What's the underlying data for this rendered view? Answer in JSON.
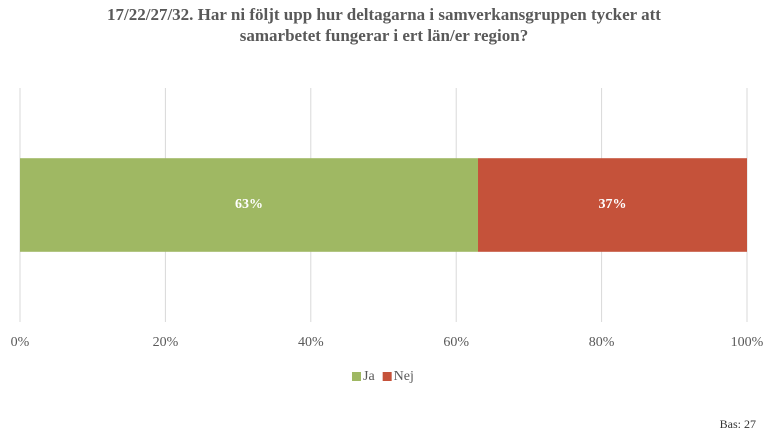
{
  "chart_data": {
    "type": "stacked_bar_horizontal",
    "title": "17/22/27/32.  Har ni följt upp hur deltagarna i samverkansgruppen tycker att samarbetet fungerar i ert län/er region?",
    "categories": [
      null
    ],
    "series": [
      {
        "name": "Ja",
        "color": "#9fb863",
        "values": [
          63
        ],
        "value_labels": [
          "63%"
        ]
      },
      {
        "name": "Nej",
        "color": "#c5523a",
        "values": [
          37
        ],
        "value_labels": [
          "37%"
        ]
      }
    ],
    "xlim": [
      0,
      100
    ],
    "xticks": [
      {
        "value": 0,
        "label": "0%"
      },
      {
        "value": 20,
        "label": "20%"
      },
      {
        "value": 40,
        "label": "40%"
      },
      {
        "value": 60,
        "label": "60%"
      },
      {
        "value": 80,
        "label": "80%"
      },
      {
        "value": 100,
        "label": "100%"
      }
    ],
    "grid": true,
    "legend": "bottom",
    "annotation": "Bas: 27"
  }
}
